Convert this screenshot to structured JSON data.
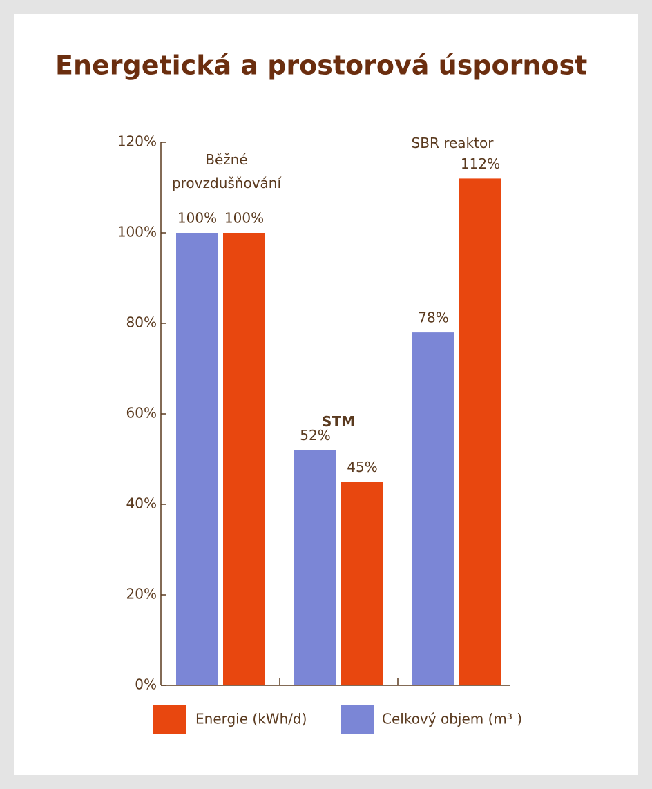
{
  "chart_data": {
    "type": "bar",
    "title": "Energetická a prostorová úspornost",
    "categories": [
      "Běžné provzdušňování",
      "STM",
      "SBR reaktor"
    ],
    "series": [
      {
        "name": "Celkový objem (m³ )",
        "color": "#7b86d6",
        "values": [
          100,
          52,
          78
        ],
        "value_labels": [
          "100%",
          "52%",
          "78%"
        ]
      },
      {
        "name": "Energie (kWh/d)",
        "color": "#e8470f",
        "values": [
          100,
          45,
          112
        ],
        "value_labels": [
          "100%",
          "45%",
          "112%"
        ]
      }
    ],
    "ylim": [
      0,
      120
    ],
    "yticks": [
      {
        "value": 0,
        "label": "0%"
      },
      {
        "value": 20,
        "label": "20%"
      },
      {
        "value": 40,
        "label": "40%"
      },
      {
        "value": 60,
        "label": "60%"
      },
      {
        "value": 80,
        "label": "80%"
      },
      {
        "value": 100,
        "label": "100%"
      },
      {
        "value": 120,
        "label": "120%"
      }
    ],
    "grid": false
  }
}
